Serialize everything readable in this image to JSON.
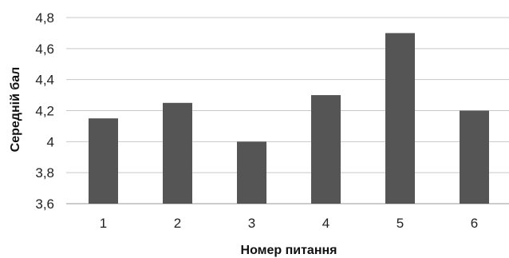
{
  "chart_data": {
    "type": "bar",
    "categories": [
      "1",
      "2",
      "3",
      "4",
      "5",
      "6"
    ],
    "values": [
      4.15,
      4.25,
      4.0,
      4.3,
      4.7,
      4.2
    ],
    "xlabel": "Номер питання",
    "ylabel": "Середній бал",
    "ylim": [
      3.6,
      4.8
    ],
    "yticks": [
      "3,6",
      "3,8",
      "4",
      "4,2",
      "4,4",
      "4,6",
      "4,8"
    ],
    "ytick_values": [
      3.6,
      3.8,
      4.0,
      4.2,
      4.4,
      4.6,
      4.8
    ],
    "grid": true,
    "legend": "none",
    "bar_color": "#555555"
  }
}
